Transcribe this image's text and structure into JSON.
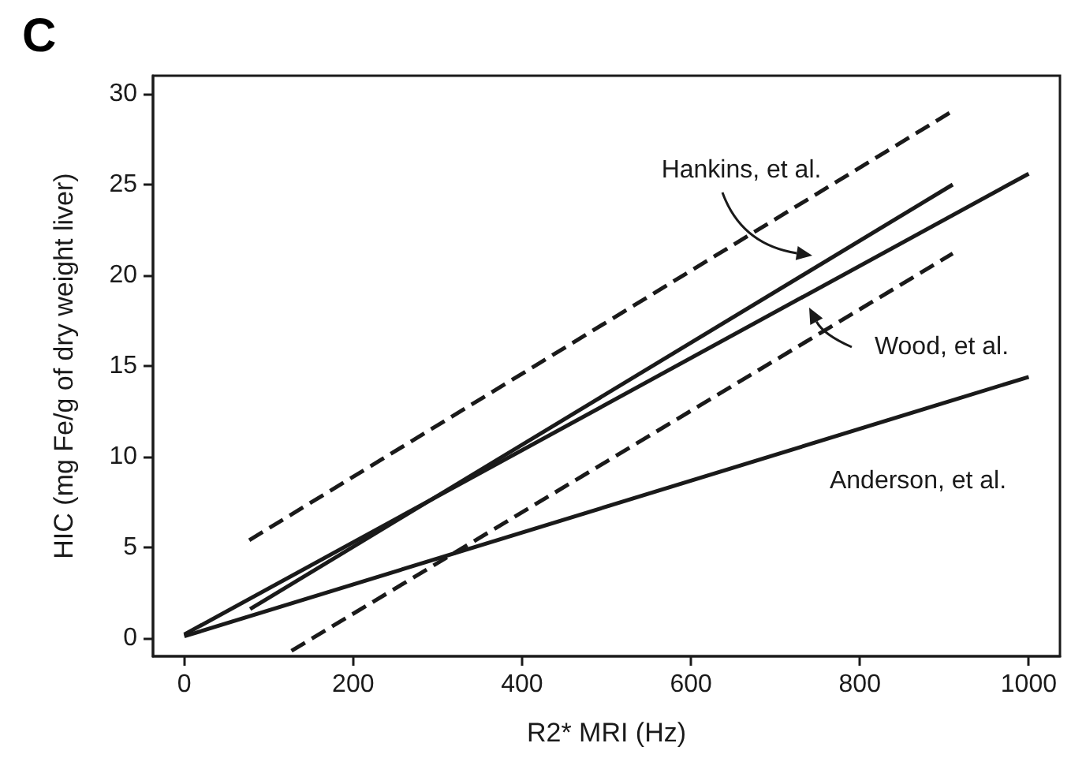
{
  "chart_data": {
    "type": "line",
    "xlabel": "R2* MRI (Hz)",
    "ylabel": "HIC (mg Fe/g of dry weight liver)",
    "xlim": [
      -37,
      1037
    ],
    "ylim": [
      -1,
      31
    ],
    "xticks": [
      0,
      200,
      400,
      600,
      800,
      1000
    ],
    "yticks": [
      0,
      5,
      10,
      15,
      20,
      25,
      30
    ],
    "grid": false,
    "marker": "none",
    "series": [
      {
        "color": "#1a1a1a",
        "x": [
          78,
          910
        ],
        "values": [
          1.6,
          25.0
        ],
        "line_style": "solid"
      },
      {
        "color": "#1a1a1a",
        "x": [
          0,
          1000
        ],
        "values": [
          0.2,
          25.6
        ],
        "line_style": "solid"
      },
      {
        "color": "#1a1a1a",
        "x": [
          0,
          1000
        ],
        "values": [
          0.1,
          14.4
        ],
        "line_style": "solid"
      },
      {
        "color": "#1a1a1a",
        "x": [
          77,
          908
        ],
        "values": [
          5.4,
          29.0
        ],
        "line_style": "dashed"
      },
      {
        "color": "#1a1a1a",
        "x": [
          127,
          910
        ],
        "values": [
          -0.7,
          21.2
        ],
        "line_style": "dashed"
      }
    ],
    "annotations": [
      "C",
      "Hankins, et al.",
      "Wood, et al.",
      "Anderson, et al."
    ]
  }
}
